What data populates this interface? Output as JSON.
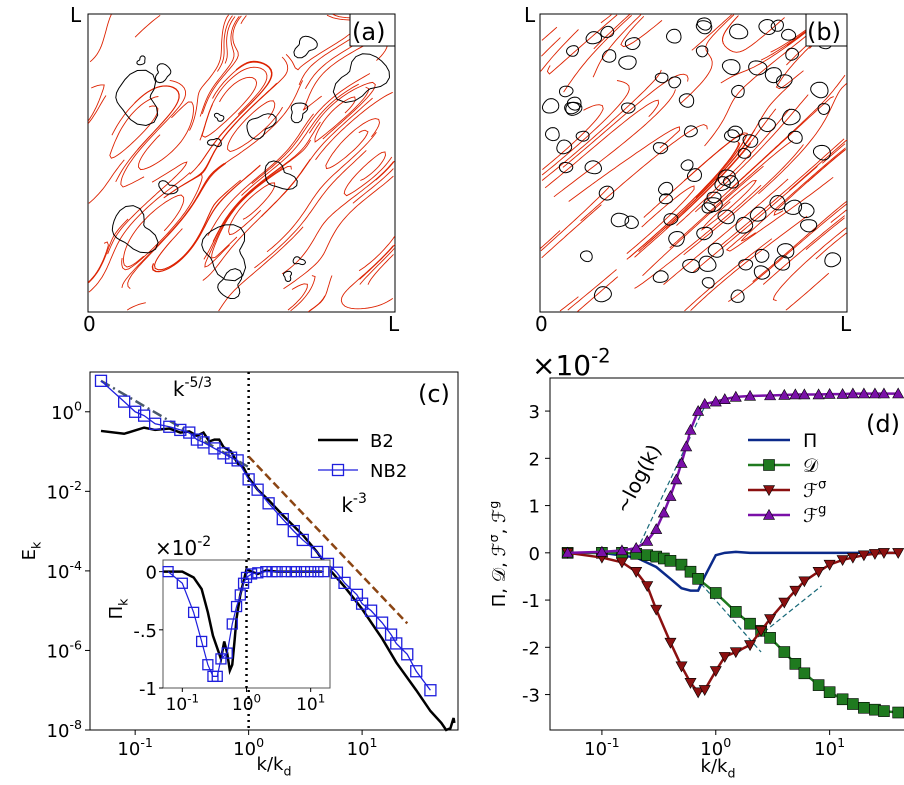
{
  "panel_a": {
    "label": "(a)",
    "corner_top": "L",
    "origin": "0",
    "corner_right": "L"
  },
  "panel_b": {
    "label": "(b)",
    "corner_top": "L",
    "origin": "0",
    "corner_right": "L"
  },
  "colors": {
    "streamline": "#dd2200",
    "contour": "#000000",
    "B2": "#000000",
    "NB2": "#1f1fdd",
    "Pi": "#0b2a8a",
    "D": "#1f7a1f",
    "Fsigma": "#8b1010",
    "Fg": "#7a10a8",
    "k53": "#4a5a6a",
    "k3": "#8b4513",
    "logk": "#1a6a7a"
  },
  "chart_data": [
    {
      "id": "c",
      "type": "line",
      "panel_label": "(c)",
      "xlabel": "k/k_d",
      "ylabel": "E_k",
      "xscale": "log",
      "yscale": "log",
      "xlim": [
        0.04,
        70
      ],
      "ylim": [
        1e-08,
        10
      ],
      "x_ticks": [
        "10^-1",
        "10^0",
        "10^1"
      ],
      "y_ticks": [
        "10^-8",
        "10^-6",
        "10^-4",
        "10^-2",
        "10^0"
      ],
      "vline_x": 1,
      "legend": [
        "B2",
        "NB2"
      ],
      "legend_position": "right",
      "annotations": [
        {
          "text": "k^-5/3",
          "slope": -1.6667,
          "x": [
            0.05,
            1.0
          ],
          "y_at_first": 6.0
        },
        {
          "text": "k^-3",
          "slope": -3,
          "x": [
            1.0,
            25
          ],
          "y_at_first": 0.075
        }
      ],
      "series": [
        {
          "name": "B2",
          "marker": "none",
          "x": [
            0.05,
            0.08,
            0.12,
            0.15,
            0.2,
            0.25,
            0.3,
            0.35,
            0.4,
            0.45,
            0.5,
            0.55,
            0.6,
            0.7,
            0.8,
            0.9,
            1.0,
            1.2,
            1.5,
            2,
            3,
            4,
            5,
            7,
            10,
            15,
            20,
            30,
            40,
            50,
            55,
            60,
            62,
            64,
            65
          ],
          "y": [
            0.33,
            0.28,
            0.4,
            0.35,
            0.38,
            0.3,
            0.32,
            0.25,
            0.3,
            0.18,
            0.2,
            0.2,
            0.13,
            0.1,
            0.05,
            0.04,
            0.022,
            0.011,
            0.006,
            0.0025,
            0.0008,
            0.0003,
            0.00012,
            4e-05,
            1.1e-05,
            2e-06,
            5e-07,
            1e-07,
            3e-08,
            1.5e-08,
            1e-08,
            1.1e-08,
            1.5e-08,
            2e-08,
            1.5e-08
          ]
        },
        {
          "name": "NB2",
          "marker": "square",
          "x": [
            0.05,
            0.08,
            0.1,
            0.12,
            0.15,
            0.2,
            0.25,
            0.3,
            0.35,
            0.4,
            0.5,
            0.6,
            0.7,
            0.8,
            1.0,
            1.2,
            1.5,
            2,
            2.5,
            3,
            4,
            5,
            6,
            7,
            9,
            10,
            12,
            15,
            18,
            20,
            25,
            30,
            40
          ],
          "y": [
            6.0,
            1.8,
            1.0,
            0.8,
            0.5,
            0.42,
            0.35,
            0.3,
            0.2,
            0.17,
            0.12,
            0.09,
            0.07,
            0.06,
            0.02,
            0.011,
            0.005,
            0.002,
            0.001,
            0.0006,
            0.0003,
            0.00015,
            9e-05,
            5e-05,
            2.5e-05,
            1.5e-05,
            1e-05,
            5e-06,
            2.5e-06,
            1.5e-06,
            8e-07,
            3e-07,
            1e-07
          ]
        }
      ]
    },
    {
      "id": "c-inset",
      "type": "line",
      "ylabel": "Π_k",
      "multiplier": "×10^-2",
      "xscale": "log",
      "xlim": [
        0.05,
        20
      ],
      "ylim": [
        -1,
        0.1
      ],
      "x_ticks": [
        "10^-1",
        "10^0",
        "10^1"
      ],
      "y_ticks": [
        "0",
        "-.5",
        "-1"
      ],
      "vline_x": 1,
      "series": [
        {
          "name": "B2",
          "marker": "none",
          "x": [
            0.05,
            0.1,
            0.15,
            0.2,
            0.25,
            0.3,
            0.4,
            0.45,
            0.5,
            0.55,
            0.6,
            0.65,
            0.7,
            0.8,
            1.0,
            1.2,
            1.5,
            2,
            3,
            5,
            8,
            12,
            15
          ],
          "y": [
            0.0,
            0.0,
            -0.05,
            -0.15,
            -0.35,
            -0.55,
            -0.75,
            -0.6,
            -0.7,
            -0.85,
            -0.8,
            -0.6,
            -0.4,
            -0.2,
            0.02,
            0.0,
            -0.02,
            0.01,
            0.0,
            0.0,
            0.0,
            0.0,
            0.0
          ]
        },
        {
          "name": "NB2",
          "marker": "square",
          "x": [
            0.06,
            0.1,
            0.15,
            0.2,
            0.25,
            0.3,
            0.35,
            0.4,
            0.5,
            0.6,
            0.7,
            0.8,
            0.9,
            1.0,
            1.2,
            1.5,
            2,
            2.5,
            3,
            4,
            5,
            6,
            8,
            10,
            13,
            16
          ],
          "y": [
            0.0,
            -0.1,
            -0.35,
            -0.6,
            -0.8,
            -0.9,
            -0.9,
            -0.75,
            -0.7,
            -0.45,
            -0.3,
            -0.2,
            -0.1,
            -0.05,
            -0.02,
            -0.01,
            0.0,
            0.0,
            0.0,
            0.0,
            0.0,
            0.0,
            0.0,
            0.0,
            0.0,
            0.0
          ]
        }
      ]
    },
    {
      "id": "d",
      "type": "line",
      "panel_label": "(d)",
      "multiplier": "×10^-2",
      "xlabel": "k/k_d",
      "ylabel": "Π, 𝒟, ℱ^σ, ℱ^g",
      "xscale": "log",
      "xlim": [
        0.035,
        45
      ],
      "ylim": [
        -3.75,
        3.7
      ],
      "x_ticks": [
        "10^-1",
        "10^0",
        "10^1"
      ],
      "y_ticks": [
        "-3",
        "-2",
        "-1",
        "0",
        "1",
        "2",
        "3"
      ],
      "legend": [
        "Π",
        "𝒟",
        "ℱ^σ",
        "ℱ^g"
      ],
      "legend_position": "upper-right",
      "annotations": [
        {
          "text": "~log(k)"
        }
      ],
      "series": [
        {
          "name": "Π",
          "marker": "none",
          "x": [
            0.05,
            0.1,
            0.2,
            0.3,
            0.4,
            0.5,
            0.6,
            0.7,
            0.8,
            1.0,
            1.2,
            1.5,
            2,
            3,
            5,
            10,
            20,
            40
          ],
          "y": [
            0.0,
            0.0,
            -0.1,
            -0.3,
            -0.55,
            -0.75,
            -0.8,
            -0.8,
            -0.5,
            -0.05,
            0.0,
            0.02,
            0.0,
            0.0,
            0.0,
            0.0,
            0.0,
            0.0
          ]
        },
        {
          "name": "𝒟",
          "marker": "square",
          "x": [
            0.05,
            0.1,
            0.15,
            0.2,
            0.25,
            0.3,
            0.35,
            0.4,
            0.5,
            0.6,
            0.7,
            1.0,
            1.5,
            2,
            2.5,
            3,
            4,
            5,
            6,
            8,
            10,
            13,
            16,
            20,
            25,
            30,
            40
          ],
          "y": [
            0.0,
            0.0,
            0.0,
            -0.02,
            -0.05,
            -0.08,
            -0.12,
            -0.17,
            -0.25,
            -0.4,
            -0.55,
            -0.85,
            -1.25,
            -1.5,
            -1.65,
            -1.8,
            -2.1,
            -2.35,
            -2.55,
            -2.8,
            -2.95,
            -3.1,
            -3.2,
            -3.28,
            -3.32,
            -3.35,
            -3.38
          ]
        },
        {
          "name": "ℱ^σ",
          "marker": "triangle-down",
          "x": [
            0.05,
            0.1,
            0.15,
            0.2,
            0.25,
            0.3,
            0.4,
            0.5,
            0.6,
            0.7,
            0.8,
            1.0,
            1.2,
            1.5,
            2,
            2.5,
            3,
            4,
            5,
            6,
            8,
            10,
            13,
            16,
            20,
            25,
            30,
            40
          ],
          "y": [
            0.0,
            -0.1,
            -0.2,
            -0.4,
            -0.7,
            -1.2,
            -1.9,
            -2.4,
            -2.75,
            -2.95,
            -2.9,
            -2.5,
            -2.2,
            -2.1,
            -1.95,
            -1.65,
            -1.4,
            -1.05,
            -0.8,
            -0.6,
            -0.4,
            -0.25,
            -0.15,
            -0.1,
            -0.05,
            -0.02,
            0.0,
            0.0
          ]
        },
        {
          "name": "ℱ^g",
          "marker": "triangle-up",
          "x": [
            0.05,
            0.1,
            0.15,
            0.2,
            0.25,
            0.3,
            0.35,
            0.4,
            0.45,
            0.5,
            0.55,
            0.6,
            0.7,
            0.8,
            1.0,
            1.2,
            1.5,
            2,
            3,
            4,
            5,
            6,
            8,
            10,
            13,
            16,
            20,
            25,
            30,
            40
          ],
          "y": [
            0.0,
            0.02,
            0.05,
            0.1,
            0.25,
            0.5,
            0.85,
            1.2,
            1.55,
            1.9,
            2.25,
            2.6,
            3.0,
            3.15,
            3.2,
            3.25,
            3.3,
            3.32,
            3.33,
            3.34,
            3.35,
            3.35,
            3.35,
            3.36,
            3.36,
            3.37,
            3.37,
            3.37,
            3.37,
            3.37
          ]
        }
      ]
    }
  ]
}
